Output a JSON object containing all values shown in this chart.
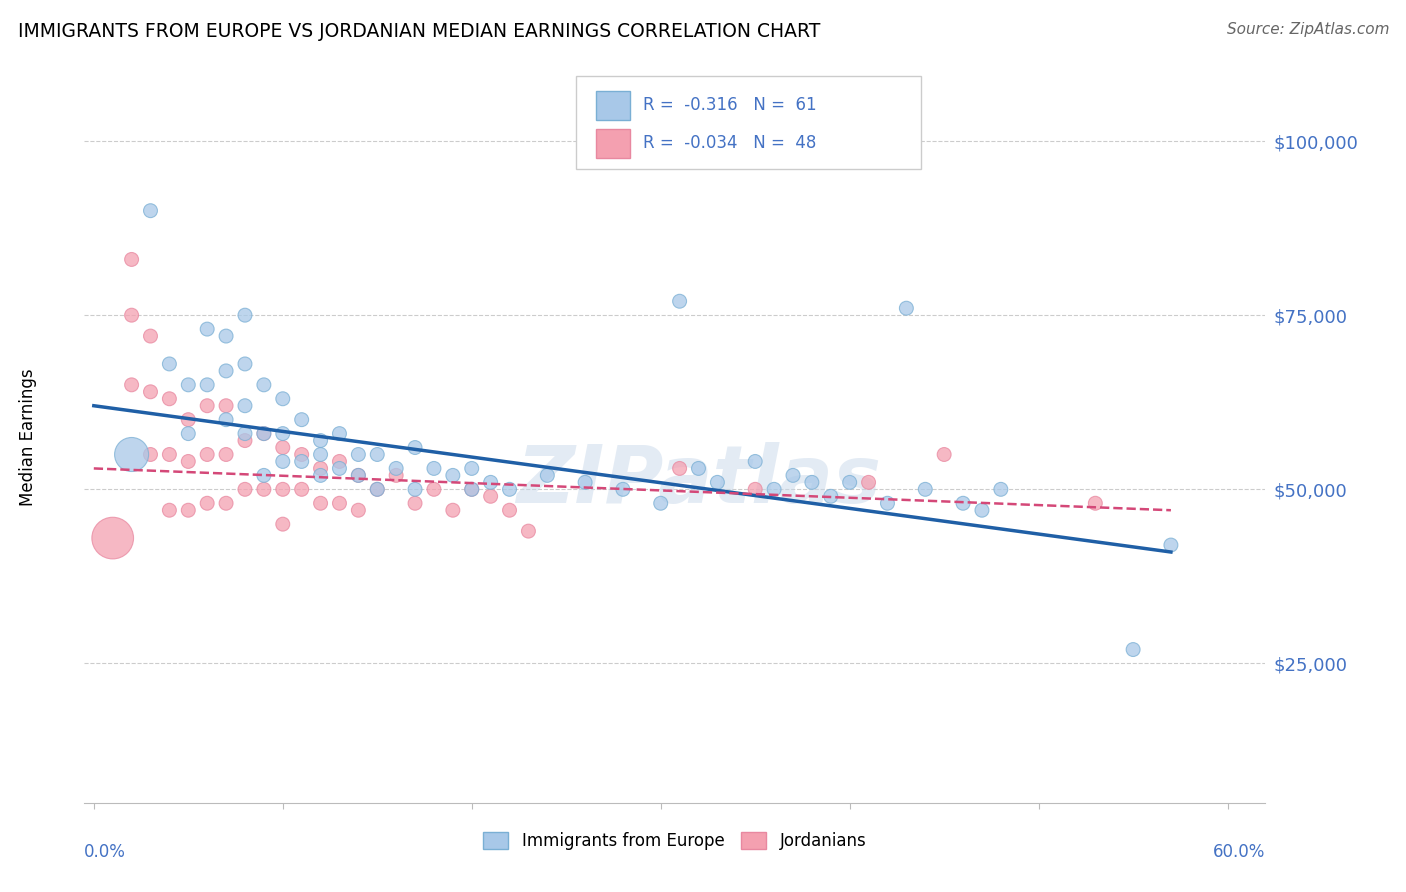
{
  "title": "IMMIGRANTS FROM EUROPE VS JORDANIAN MEDIAN EARNINGS CORRELATION CHART",
  "source": "Source: ZipAtlas.com",
  "ylabel": "Median Earnings",
  "y_tick_labels": [
    "$25,000",
    "$50,000",
    "$75,000",
    "$100,000"
  ],
  "y_tick_values": [
    25000,
    50000,
    75000,
    100000
  ],
  "ylim": [
    5000,
    110000
  ],
  "xlim": [
    -0.005,
    0.62
  ],
  "watermark": "ZIPatlas",
  "blue_color": "#a8c8e8",
  "pink_color": "#f4a0b0",
  "blue_edge_color": "#7aafd4",
  "pink_edge_color": "#e888a0",
  "blue_line_color": "#1f5fa6",
  "pink_line_color": "#d44878",
  "axis_label_color": "#4472c4",
  "legend_text_color": "#4472c4",
  "grid_color": "#cccccc",
  "blue_scatter_x": [
    0.02,
    0.03,
    0.04,
    0.05,
    0.05,
    0.06,
    0.06,
    0.07,
    0.07,
    0.07,
    0.08,
    0.08,
    0.08,
    0.08,
    0.09,
    0.09,
    0.09,
    0.1,
    0.1,
    0.1,
    0.11,
    0.11,
    0.12,
    0.12,
    0.12,
    0.13,
    0.13,
    0.14,
    0.14,
    0.15,
    0.15,
    0.16,
    0.17,
    0.17,
    0.18,
    0.19,
    0.2,
    0.2,
    0.21,
    0.22,
    0.24,
    0.26,
    0.28,
    0.3,
    0.31,
    0.32,
    0.33,
    0.35,
    0.36,
    0.37,
    0.38,
    0.39,
    0.4,
    0.42,
    0.43,
    0.44,
    0.46,
    0.47,
    0.48,
    0.55,
    0.57
  ],
  "blue_scatter_y": [
    55000,
    90000,
    68000,
    65000,
    58000,
    73000,
    65000,
    72000,
    67000,
    60000,
    75000,
    68000,
    62000,
    58000,
    65000,
    58000,
    52000,
    63000,
    58000,
    54000,
    60000,
    54000,
    57000,
    55000,
    52000,
    58000,
    53000,
    55000,
    52000,
    55000,
    50000,
    53000,
    56000,
    50000,
    53000,
    52000,
    53000,
    50000,
    51000,
    50000,
    52000,
    51000,
    50000,
    48000,
    77000,
    53000,
    51000,
    54000,
    50000,
    52000,
    51000,
    49000,
    51000,
    48000,
    76000,
    50000,
    48000,
    47000,
    50000,
    27000,
    42000
  ],
  "blue_scatter_size": [
    600,
    100,
    100,
    100,
    100,
    100,
    100,
    100,
    100,
    100,
    100,
    100,
    100,
    100,
    100,
    100,
    100,
    100,
    100,
    100,
    100,
    100,
    100,
    100,
    100,
    100,
    100,
    100,
    100,
    100,
    100,
    100,
    100,
    100,
    100,
    100,
    100,
    100,
    100,
    100,
    100,
    100,
    100,
    100,
    100,
    100,
    100,
    100,
    100,
    100,
    100,
    100,
    100,
    100,
    100,
    100,
    100,
    100,
    100,
    100,
    100
  ],
  "pink_scatter_x": [
    0.01,
    0.02,
    0.02,
    0.02,
    0.03,
    0.03,
    0.03,
    0.04,
    0.04,
    0.04,
    0.05,
    0.05,
    0.05,
    0.06,
    0.06,
    0.06,
    0.07,
    0.07,
    0.07,
    0.08,
    0.08,
    0.09,
    0.09,
    0.1,
    0.1,
    0.1,
    0.11,
    0.11,
    0.12,
    0.12,
    0.13,
    0.13,
    0.14,
    0.14,
    0.15,
    0.16,
    0.17,
    0.18,
    0.19,
    0.2,
    0.21,
    0.22,
    0.23,
    0.31,
    0.35,
    0.41,
    0.45,
    0.53
  ],
  "pink_scatter_size": [
    900,
    100,
    100,
    100,
    100,
    100,
    100,
    100,
    100,
    100,
    100,
    100,
    100,
    100,
    100,
    100,
    100,
    100,
    100,
    100,
    100,
    100,
    100,
    100,
    100,
    100,
    100,
    100,
    100,
    100,
    100,
    100,
    100,
    100,
    100,
    100,
    100,
    100,
    100,
    100,
    100,
    100,
    100,
    100,
    100,
    100,
    100,
    100
  ],
  "pink_scatter_y": [
    43000,
    83000,
    75000,
    65000,
    72000,
    64000,
    55000,
    63000,
    55000,
    47000,
    60000,
    54000,
    47000,
    62000,
    55000,
    48000,
    62000,
    55000,
    48000,
    57000,
    50000,
    58000,
    50000,
    56000,
    50000,
    45000,
    55000,
    50000,
    53000,
    48000,
    54000,
    48000,
    52000,
    47000,
    50000,
    52000,
    48000,
    50000,
    47000,
    50000,
    49000,
    47000,
    44000,
    53000,
    50000,
    51000,
    55000,
    48000
  ],
  "blue_line_x": [
    0.0,
    0.57
  ],
  "blue_line_y": [
    62000,
    41000
  ],
  "pink_line_x": [
    0.0,
    0.57
  ],
  "pink_line_y": [
    53000,
    47000
  ]
}
